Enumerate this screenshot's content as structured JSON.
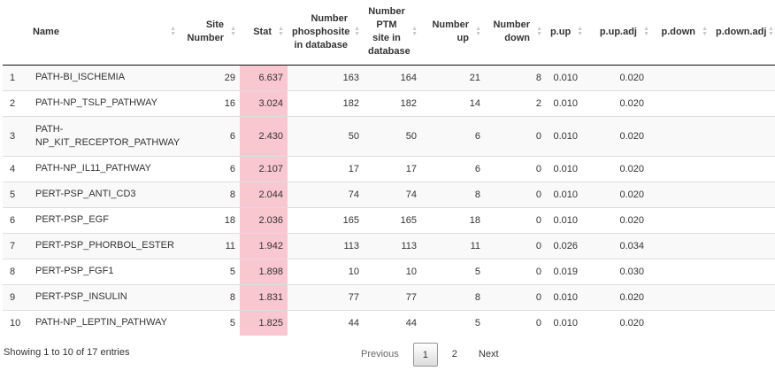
{
  "columns": [
    {
      "label": "",
      "align": "l"
    },
    {
      "label": "Name",
      "align": "l"
    },
    {
      "label": "Site Number",
      "align": "r"
    },
    {
      "label": "Stat",
      "align": "r"
    },
    {
      "label": "Number phosphosite in database",
      "align": "r"
    },
    {
      "label": "Number PTM site in database",
      "align": "c"
    },
    {
      "label": "Number up",
      "align": "r"
    },
    {
      "label": "Number down",
      "align": "r"
    },
    {
      "label": "p.up",
      "align": "r"
    },
    {
      "label": "p.up.adj",
      "align": "r"
    },
    {
      "label": "p.down",
      "align": "r"
    },
    {
      "label": "p.down.adj",
      "align": "r"
    }
  ],
  "rows": [
    {
      "idx": "1",
      "name": "PATH-BI_ISCHEMIA",
      "site": "29",
      "stat": "6.637",
      "phos": "163",
      "ptm": "164",
      "up": "21",
      "down": "8",
      "pup": "0.010",
      "pupadj": "0.020",
      "pdown": "",
      "pdownadj": ""
    },
    {
      "idx": "2",
      "name": "PATH-NP_TSLP_PATHWAY",
      "site": "16",
      "stat": "3.024",
      "phos": "182",
      "ptm": "182",
      "up": "14",
      "down": "2",
      "pup": "0.010",
      "pupadj": "0.020",
      "pdown": "",
      "pdownadj": ""
    },
    {
      "idx": "3",
      "name": "PATH-\nNP_KIT_RECEPTOR_PATHWAY",
      "site": "6",
      "stat": "2.430",
      "phos": "50",
      "ptm": "50",
      "up": "6",
      "down": "0",
      "pup": "0.010",
      "pupadj": "0.020",
      "pdown": "",
      "pdownadj": ""
    },
    {
      "idx": "4",
      "name": "PATH-NP_IL11_PATHWAY",
      "site": "6",
      "stat": "2.107",
      "phos": "17",
      "ptm": "17",
      "up": "6",
      "down": "0",
      "pup": "0.010",
      "pupadj": "0.020",
      "pdown": "",
      "pdownadj": ""
    },
    {
      "idx": "5",
      "name": "PERT-PSP_ANTI_CD3",
      "site": "8",
      "stat": "2.044",
      "phos": "74",
      "ptm": "74",
      "up": "8",
      "down": "0",
      "pup": "0.010",
      "pupadj": "0.020",
      "pdown": "",
      "pdownadj": ""
    },
    {
      "idx": "6",
      "name": "PERT-PSP_EGF",
      "site": "18",
      "stat": "2.036",
      "phos": "165",
      "ptm": "165",
      "up": "18",
      "down": "0",
      "pup": "0.010",
      "pupadj": "0.020",
      "pdown": "",
      "pdownadj": ""
    },
    {
      "idx": "7",
      "name": "PERT-PSP_PHORBOL_ESTER",
      "site": "11",
      "stat": "1.942",
      "phos": "113",
      "ptm": "113",
      "up": "11",
      "down": "0",
      "pup": "0.026",
      "pupadj": "0.034",
      "pdown": "",
      "pdownadj": ""
    },
    {
      "idx": "8",
      "name": "PERT-PSP_FGF1",
      "site": "5",
      "stat": "1.898",
      "phos": "10",
      "ptm": "10",
      "up": "5",
      "down": "0",
      "pup": "0.019",
      "pupadj": "0.030",
      "pdown": "",
      "pdownadj": ""
    },
    {
      "idx": "9",
      "name": "PERT-PSP_INSULIN",
      "site": "8",
      "stat": "1.831",
      "phos": "77",
      "ptm": "77",
      "up": "8",
      "down": "0",
      "pup": "0.010",
      "pupadj": "0.020",
      "pdown": "",
      "pdownadj": ""
    },
    {
      "idx": "10",
      "name": "PATH-NP_LEPTIN_PATHWAY",
      "site": "5",
      "stat": "1.825",
      "phos": "44",
      "ptm": "44",
      "up": "5",
      "down": "0",
      "pup": "0.010",
      "pupadj": "0.020",
      "pdown": "",
      "pdownadj": ""
    }
  ],
  "footer": {
    "info": "Showing 1 to 10 of 17 entries",
    "previous": "Previous",
    "pages": [
      "1",
      "2"
    ],
    "current_page": "1",
    "next": "Next"
  },
  "colors": {
    "stat_highlight": "#f9c7cf",
    "stripe": "#f9f9f9"
  },
  "icons": {
    "sort": "sort-both-icon"
  }
}
